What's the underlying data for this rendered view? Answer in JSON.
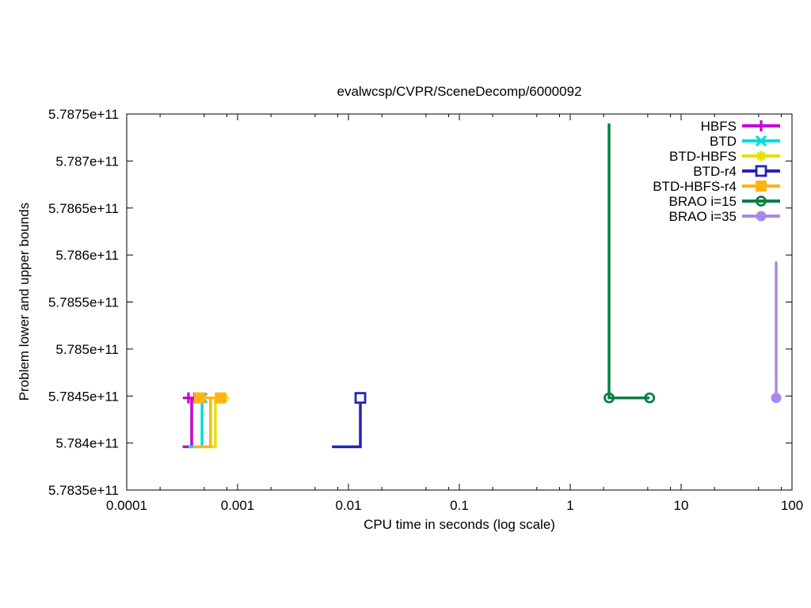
{
  "chart_data": {
    "type": "line",
    "title": "evalwcsp/CVPR/SceneDecomp/6000092",
    "xlabel": "CPU time in seconds (log scale)",
    "ylabel": "Problem lower and upper bounds",
    "x_scale": "log",
    "grid": false,
    "legend_position": "top-right-inside",
    "xlim": [
      0.0001,
      100
    ],
    "ylim": [
      578350000000,
      578750000000
    ],
    "x_ticks": [
      {
        "v": 0.0001,
        "label": "0.0001"
      },
      {
        "v": 0.001,
        "label": "0.001"
      },
      {
        "v": 0.01,
        "label": "0.01"
      },
      {
        "v": 0.1,
        "label": "0.1"
      },
      {
        "v": 1,
        "label": "1"
      },
      {
        "v": 10,
        "label": "10"
      },
      {
        "v": 100,
        "label": "100"
      }
    ],
    "x_minor_tick_multiples": [
      2,
      5,
      8
    ],
    "y_ticks": [
      {
        "v": 578350000000,
        "label": "5.7835e+11"
      },
      {
        "v": 578400000000,
        "label": "5.784e+11"
      },
      {
        "v": 578450000000,
        "label": "5.7845e+11"
      },
      {
        "v": 578500000000,
        "label": "5.785e+11"
      },
      {
        "v": 578550000000,
        "label": "5.7855e+11"
      },
      {
        "v": 578600000000,
        "label": "5.786e+11"
      },
      {
        "v": 578650000000,
        "label": "5.7865e+11"
      },
      {
        "v": 578700000000,
        "label": "5.787e+11"
      },
      {
        "v": 578750000000,
        "label": "5.7875e+11"
      }
    ],
    "optimum": 578448000000,
    "initial_lower_bound": 578396000000,
    "series": [
      {
        "name": "HBFS",
        "color": "#c400d6",
        "marker": "plus",
        "segments": [
          [
            [
              0.00032,
              578396000000
            ],
            [
              0.000385,
              578396000000
            ],
            [
              0.000385,
              578448000000
            ]
          ]
        ],
        "markers": [
          [
            0.00036,
            578448000000
          ],
          [
            0.00041,
            578448000000
          ]
        ]
      },
      {
        "name": "BTD",
        "color": "#00dcdc",
        "marker": "cross",
        "segments": [
          [
            [
              0.00036,
              578396000000
            ],
            [
              0.000478,
              578396000000
            ],
            [
              0.000478,
              578448000000
            ]
          ]
        ],
        "markers": [
          [
            0.000478,
            578448000000
          ]
        ]
      },
      {
        "name": "BTD-HBFS",
        "color": "#e3e300",
        "marker": "asterisk",
        "segments": [
          [
            [
              0.00055,
              578396000000
            ],
            [
              0.00063,
              578396000000
            ],
            [
              0.00063,
              578448000000
            ]
          ]
        ],
        "markers": [
          [
            0.00075,
            578448000000
          ]
        ]
      },
      {
        "name": "BTD-r4",
        "color": "#2424b4",
        "marker": "open-square",
        "segments": [
          [
            [
              0.0071,
              578396000000
            ],
            [
              0.0128,
              578396000000
            ],
            [
              0.0128,
              578448000000
            ]
          ]
        ],
        "markers": [
          [
            0.0128,
            578448000000
          ]
        ]
      },
      {
        "name": "BTD-HBFS-r4",
        "color": "#ffb414",
        "marker": "filled-square",
        "segments": [
          [
            [
              0.000398,
              578396000000
            ],
            [
              0.00057,
              578396000000
            ],
            [
              0.00057,
              578448000000
            ]
          ],
          [
            [
              0.000454,
              578448000000
            ],
            [
              0.0007,
              578448000000
            ]
          ]
        ],
        "markers": [
          [
            0.000454,
            578448000000
          ],
          [
            0.0007,
            578448000000
          ]
        ]
      },
      {
        "name": "BRAO i=15",
        "color": "#087f45",
        "marker": "open-circle",
        "segments": [
          [
            [
              2.24,
              578740000000
            ],
            [
              2.24,
              578448000000
            ],
            [
              5.2,
              578448000000
            ]
          ]
        ],
        "markers": [
          [
            2.24,
            578448000000
          ],
          [
            5.2,
            578448000000
          ]
        ]
      },
      {
        "name": "BRAO i=35",
        "color": "#a988ec",
        "marker": "filled-circle",
        "segments": [
          [
            [
              72,
              578593000000
            ],
            [
              72,
              578448000000
            ]
          ]
        ],
        "markers": [
          [
            72,
            578448000000
          ]
        ]
      }
    ]
  }
}
